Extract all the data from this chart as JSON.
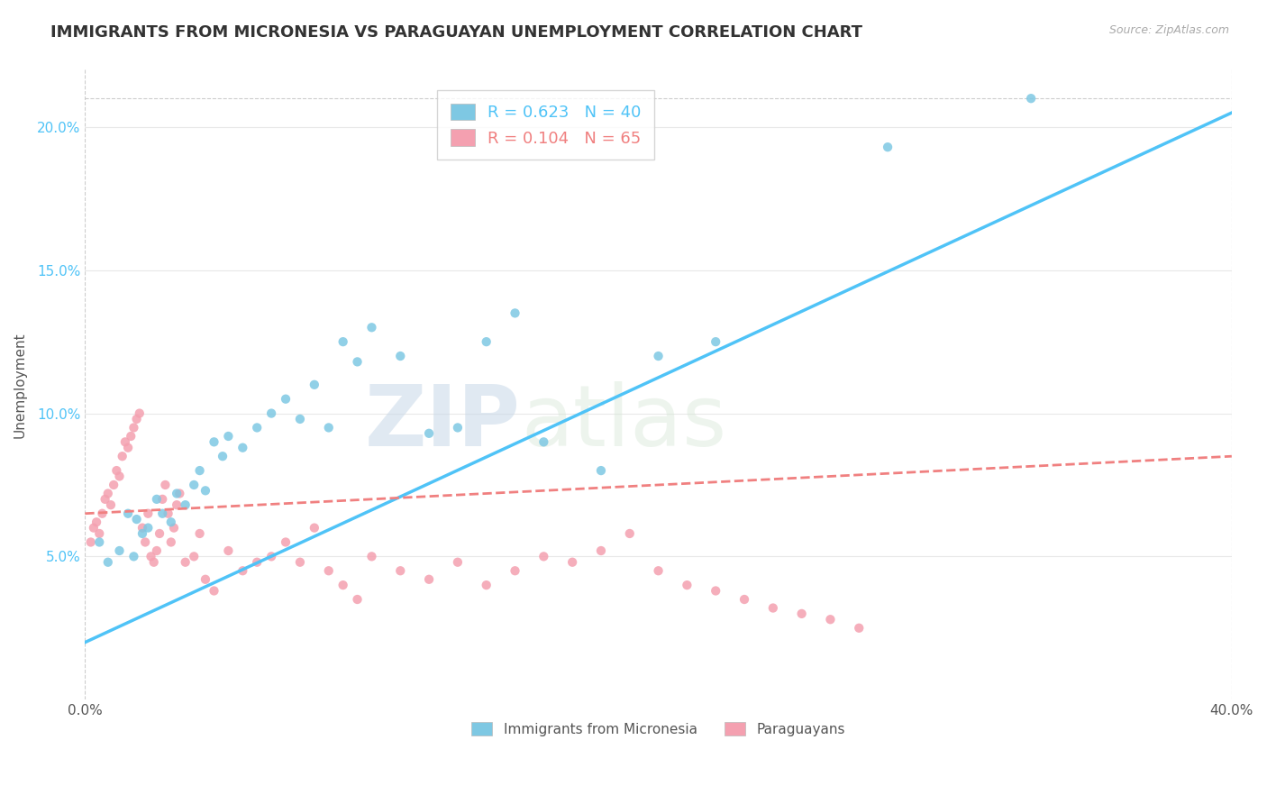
{
  "title": "IMMIGRANTS FROM MICRONESIA VS PARAGUAYAN UNEMPLOYMENT CORRELATION CHART",
  "source_text": "Source: ZipAtlas.com",
  "ylabel": "Unemployment",
  "xlim": [
    0.0,
    0.4
  ],
  "ylim": [
    0.0,
    0.22
  ],
  "ytick_labels": [
    "5.0%",
    "10.0%",
    "15.0%",
    "20.0%"
  ],
  "ytick_values": [
    0.05,
    0.1,
    0.15,
    0.2
  ],
  "legend_labels": [
    "R = 0.623   N = 40",
    "R = 0.104   N = 65"
  ],
  "bottom_legend_labels": [
    "Immigrants from Micronesia",
    "Paraguayans"
  ],
  "blue_scatter_x": [
    0.005,
    0.008,
    0.012,
    0.015,
    0.017,
    0.018,
    0.02,
    0.022,
    0.025,
    0.027,
    0.03,
    0.032,
    0.035,
    0.038,
    0.04,
    0.042,
    0.045,
    0.048,
    0.05,
    0.055,
    0.06,
    0.065,
    0.07,
    0.075,
    0.08,
    0.085,
    0.09,
    0.095,
    0.1,
    0.11,
    0.12,
    0.13,
    0.14,
    0.15,
    0.16,
    0.18,
    0.2,
    0.22,
    0.28,
    0.33
  ],
  "blue_scatter_y": [
    0.055,
    0.048,
    0.052,
    0.065,
    0.05,
    0.063,
    0.058,
    0.06,
    0.07,
    0.065,
    0.062,
    0.072,
    0.068,
    0.075,
    0.08,
    0.073,
    0.09,
    0.085,
    0.092,
    0.088,
    0.095,
    0.1,
    0.105,
    0.098,
    0.11,
    0.095,
    0.125,
    0.118,
    0.13,
    0.12,
    0.093,
    0.095,
    0.125,
    0.135,
    0.09,
    0.08,
    0.12,
    0.125,
    0.193,
    0.21
  ],
  "pink_scatter_x": [
    0.002,
    0.003,
    0.004,
    0.005,
    0.006,
    0.007,
    0.008,
    0.009,
    0.01,
    0.011,
    0.012,
    0.013,
    0.014,
    0.015,
    0.016,
    0.017,
    0.018,
    0.019,
    0.02,
    0.021,
    0.022,
    0.023,
    0.024,
    0.025,
    0.026,
    0.027,
    0.028,
    0.029,
    0.03,
    0.031,
    0.032,
    0.033,
    0.035,
    0.038,
    0.04,
    0.042,
    0.045,
    0.05,
    0.055,
    0.06,
    0.065,
    0.07,
    0.075,
    0.08,
    0.085,
    0.09,
    0.095,
    0.1,
    0.11,
    0.12,
    0.13,
    0.14,
    0.15,
    0.16,
    0.17,
    0.18,
    0.19,
    0.2,
    0.21,
    0.22,
    0.23,
    0.24,
    0.25,
    0.26,
    0.27
  ],
  "pink_scatter_y": [
    0.055,
    0.06,
    0.062,
    0.058,
    0.065,
    0.07,
    0.072,
    0.068,
    0.075,
    0.08,
    0.078,
    0.085,
    0.09,
    0.088,
    0.092,
    0.095,
    0.098,
    0.1,
    0.06,
    0.055,
    0.065,
    0.05,
    0.048,
    0.052,
    0.058,
    0.07,
    0.075,
    0.065,
    0.055,
    0.06,
    0.068,
    0.072,
    0.048,
    0.05,
    0.058,
    0.042,
    0.038,
    0.052,
    0.045,
    0.048,
    0.05,
    0.055,
    0.048,
    0.06,
    0.045,
    0.04,
    0.035,
    0.05,
    0.045,
    0.042,
    0.048,
    0.04,
    0.045,
    0.05,
    0.048,
    0.052,
    0.058,
    0.045,
    0.04,
    0.038,
    0.035,
    0.032,
    0.03,
    0.028,
    0.025
  ],
  "blue_line_x": [
    0.0,
    0.4
  ],
  "blue_line_y": [
    0.02,
    0.205
  ],
  "pink_line_x": [
    0.0,
    0.4
  ],
  "pink_line_y": [
    0.065,
    0.085
  ],
  "blue_color": "#7EC8E3",
  "pink_color": "#F4A0B0",
  "blue_line_color": "#4FC3F7",
  "pink_line_color": "#F08080",
  "watermark_zip": "ZIP",
  "watermark_atlas": "atlas",
  "title_fontsize": 13,
  "background_color": "#FFFFFF",
  "grid_color": "#E8E8E8"
}
